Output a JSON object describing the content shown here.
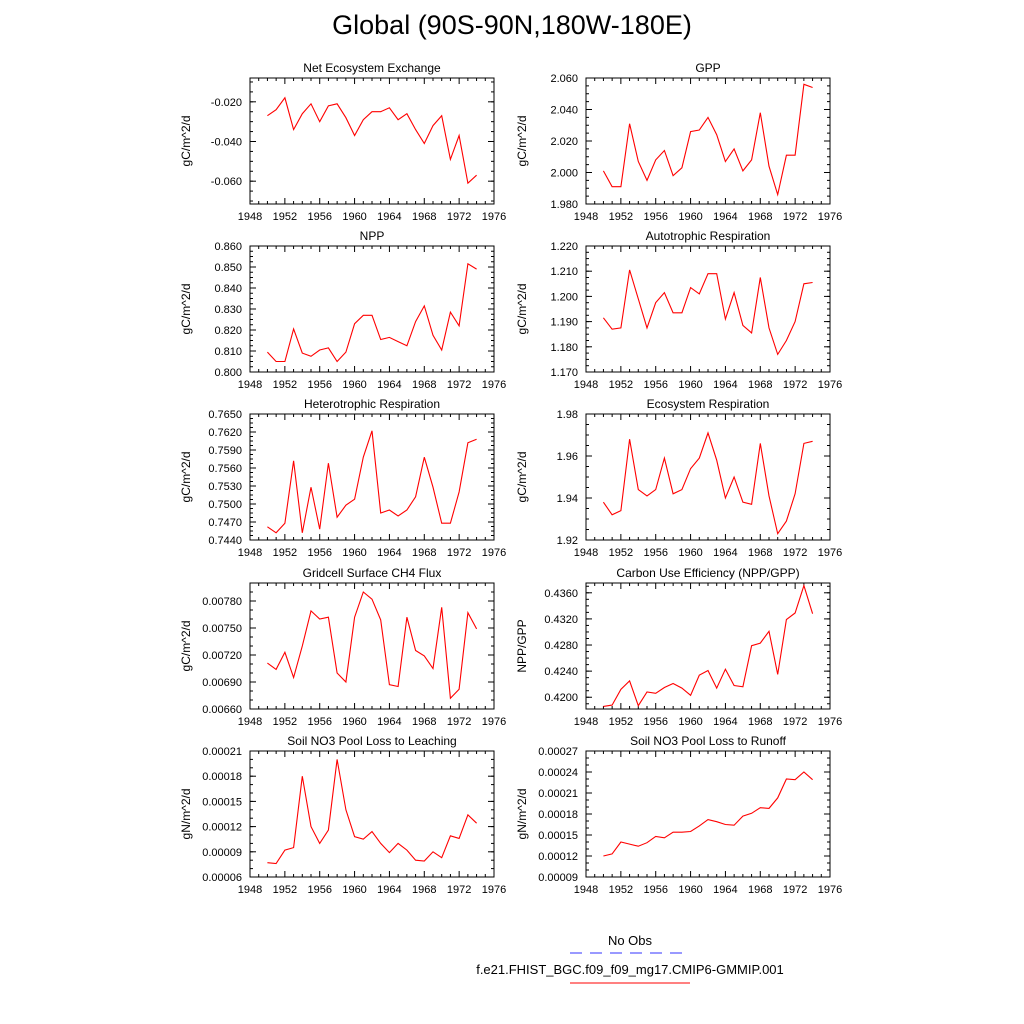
{
  "figure": {
    "title": "Global (90S-90N,180W-180E)",
    "legend": [
      {
        "label": "No Obs",
        "color": "#3333ff",
        "style": "dashed"
      },
      {
        "label": "f.e21.FHIST_BGC.f09_f09_mg17.CMIP6-GMMIP.001",
        "color": "#ff0000",
        "style": "solid"
      }
    ]
  },
  "chart_data": [
    {
      "type": "line",
      "title": "Net Ecosystem Exchange",
      "xlabel": "",
      "ylabel": "gC/m^2/d",
      "xlim": [
        1948,
        1976
      ],
      "xticks": [
        1948,
        1952,
        1956,
        1960,
        1964,
        1968,
        1972,
        1976
      ],
      "ylim": [
        -0.0715,
        -0.008
      ],
      "yticks": [
        -0.02,
        -0.04,
        -0.06
      ],
      "ytick_labels": [
        "-0.020",
        "-0.040",
        "-0.060"
      ],
      "yminor_step": 0.005,
      "series": [
        {
          "name": "f.e21.FHIST_BGC.f09_f09_mg17.CMIP6-GMMIP.001",
          "color": "#ff0000",
          "x": [
            1950,
            1951,
            1952,
            1953,
            1954,
            1955,
            1956,
            1957,
            1958,
            1959,
            1960,
            1961,
            1962,
            1963,
            1964,
            1965,
            1966,
            1967,
            1968,
            1969,
            1970,
            1971,
            1972,
            1973,
            1974
          ],
          "y": [
            -0.027,
            -0.024,
            -0.018,
            -0.034,
            -0.026,
            -0.021,
            -0.03,
            -0.022,
            -0.021,
            -0.028,
            -0.037,
            -0.029,
            -0.025,
            -0.025,
            -0.023,
            -0.029,
            -0.026,
            -0.034,
            -0.041,
            -0.032,
            -0.027,
            -0.049,
            -0.037,
            -0.061,
            -0.057
          ]
        }
      ]
    },
    {
      "type": "line",
      "title": "GPP",
      "xlabel": "",
      "ylabel": "gC/m^2/d",
      "xlim": [
        1948,
        1976
      ],
      "xticks": [
        1948,
        1952,
        1956,
        1960,
        1964,
        1968,
        1972,
        1976
      ],
      "ylim": [
        1.98,
        2.06
      ],
      "yticks": [
        1.98,
        2.0,
        2.02,
        2.04,
        2.06
      ],
      "ytick_labels": [
        "1.980",
        "2.000",
        "2.020",
        "2.040",
        "2.060"
      ],
      "yminor_step": 0.005,
      "series": [
        {
          "name": "f.e21.FHIST_BGC.f09_f09_mg17.CMIP6-GMMIP.001",
          "color": "#ff0000",
          "x": [
            1950,
            1951,
            1952,
            1953,
            1954,
            1955,
            1956,
            1957,
            1958,
            1959,
            1960,
            1961,
            1962,
            1963,
            1964,
            1965,
            1966,
            1967,
            1968,
            1969,
            1970,
            1971,
            1972,
            1973,
            1974
          ],
          "y": [
            2.001,
            1.991,
            1.991,
            2.031,
            2.007,
            1.995,
            2.008,
            2.014,
            1.998,
            2.003,
            2.026,
            2.027,
            2.035,
            2.024,
            2.007,
            2.015,
            2.001,
            2.008,
            2.038,
            2.004,
            1.986,
            2.011,
            2.011,
            2.056,
            2.054
          ]
        }
      ]
    },
    {
      "type": "line",
      "title": "NPP",
      "xlabel": "",
      "ylabel": "gC/m^2/d",
      "xlim": [
        1948,
        1976
      ],
      "xticks": [
        1948,
        1952,
        1956,
        1960,
        1964,
        1968,
        1972,
        1976
      ],
      "ylim": [
        0.8,
        0.86
      ],
      "yticks": [
        0.8,
        0.81,
        0.82,
        0.83,
        0.84,
        0.85,
        0.86
      ],
      "ytick_labels": [
        "0.800",
        "0.810",
        "0.820",
        "0.830",
        "0.840",
        "0.850",
        "0.860"
      ],
      "yminor_step": 0.0025,
      "series": [
        {
          "name": "f.e21.FHIST_BGC.f09_f09_mg17.CMIP6-GMMIP.001",
          "color": "#ff0000",
          "x": [
            1950,
            1951,
            1952,
            1953,
            1954,
            1955,
            1956,
            1957,
            1958,
            1959,
            1960,
            1961,
            1962,
            1963,
            1964,
            1965,
            1966,
            1967,
            1968,
            1969,
            1970,
            1971,
            1972,
            1973,
            1974
          ],
          "y": [
            0.8095,
            0.805,
            0.805,
            0.8205,
            0.809,
            0.8075,
            0.8105,
            0.8115,
            0.805,
            0.8095,
            0.823,
            0.827,
            0.827,
            0.8155,
            0.8165,
            0.8145,
            0.8125,
            0.824,
            0.8315,
            0.8175,
            0.8105,
            0.8285,
            0.822,
            0.8515,
            0.849
          ]
        }
      ]
    },
    {
      "type": "line",
      "title": "Autotrophic Respiration",
      "xlabel": "",
      "ylabel": "gC/m^2/d",
      "xlim": [
        1948,
        1976
      ],
      "xticks": [
        1948,
        1952,
        1956,
        1960,
        1964,
        1968,
        1972,
        1976
      ],
      "ylim": [
        1.17,
        1.22
      ],
      "yticks": [
        1.17,
        1.18,
        1.19,
        1.2,
        1.21,
        1.22
      ],
      "ytick_labels": [
        "1.170",
        "1.180",
        "1.190",
        "1.200",
        "1.210",
        "1.220"
      ],
      "yminor_step": 0.0025,
      "series": [
        {
          "name": "f.e21.FHIST_BGC.f09_f09_mg17.CMIP6-GMMIP.001",
          "color": "#ff0000",
          "x": [
            1950,
            1951,
            1952,
            1953,
            1954,
            1955,
            1956,
            1957,
            1958,
            1959,
            1960,
            1961,
            1962,
            1963,
            1964,
            1965,
            1966,
            1967,
            1968,
            1969,
            1970,
            1971,
            1972,
            1973,
            1974
          ],
          "y": [
            1.1915,
            1.187,
            1.1875,
            1.2105,
            1.199,
            1.1875,
            1.1975,
            1.2015,
            1.1935,
            1.1935,
            1.2035,
            1.201,
            1.209,
            1.209,
            1.191,
            1.2015,
            1.1885,
            1.1855,
            1.2075,
            1.1875,
            1.177,
            1.1825,
            1.19,
            1.205,
            1.2055
          ]
        }
      ]
    },
    {
      "type": "line",
      "title": "Heterotrophic Respiration",
      "xlabel": "",
      "ylabel": "gC/m^2/d",
      "xlim": [
        1948,
        1976
      ],
      "xticks": [
        1948,
        1952,
        1956,
        1960,
        1964,
        1968,
        1972,
        1976
      ],
      "ylim": [
        0.744,
        0.765
      ],
      "yticks": [
        0.744,
        0.747,
        0.75,
        0.753,
        0.756,
        0.759,
        0.762,
        0.765
      ],
      "ytick_labels": [
        "0.7440",
        "0.7470",
        "0.7500",
        "0.7530",
        "0.7560",
        "0.7590",
        "0.7620",
        "0.7650"
      ],
      "yminor_step": 0.00075,
      "series": [
        {
          "name": "f.e21.FHIST_BGC.f09_f09_mg17.CMIP6-GMMIP.001",
          "color": "#ff0000",
          "x": [
            1950,
            1951,
            1952,
            1953,
            1954,
            1955,
            1956,
            1957,
            1958,
            1959,
            1960,
            1961,
            1962,
            1963,
            1964,
            1965,
            1966,
            1967,
            1968,
            1969,
            1970,
            1971,
            1972,
            1973,
            1974
          ],
          "y": [
            0.7462,
            0.7452,
            0.7468,
            0.7572,
            0.7452,
            0.7528,
            0.7458,
            0.7568,
            0.7478,
            0.7498,
            0.7508,
            0.7578,
            0.7622,
            0.7485,
            0.749,
            0.748,
            0.749,
            0.7512,
            0.7578,
            0.7528,
            0.7468,
            0.7468,
            0.752,
            0.7602,
            0.7608
          ]
        }
      ]
    },
    {
      "type": "line",
      "title": "Ecosystem Respiration",
      "xlabel": "",
      "ylabel": "gC/m^2/d",
      "xlim": [
        1948,
        1976
      ],
      "xticks": [
        1948,
        1952,
        1956,
        1960,
        1964,
        1968,
        1972,
        1976
      ],
      "ylim": [
        1.92,
        1.98
      ],
      "yticks": [
        1.92,
        1.94,
        1.96,
        1.98
      ],
      "ytick_labels": [
        "1.92",
        "1.94",
        "1.96",
        "1.98"
      ],
      "yminor_step": 0.005,
      "series": [
        {
          "name": "f.e21.FHIST_BGC.f09_f09_mg17.CMIP6-GMMIP.001",
          "color": "#ff0000",
          "x": [
            1950,
            1951,
            1952,
            1953,
            1954,
            1955,
            1956,
            1957,
            1958,
            1959,
            1960,
            1961,
            1962,
            1963,
            1964,
            1965,
            1966,
            1967,
            1968,
            1969,
            1970,
            1971,
            1972,
            1973,
            1974
          ],
          "y": [
            1.938,
            1.932,
            1.934,
            1.968,
            1.944,
            1.941,
            1.944,
            1.959,
            1.942,
            1.944,
            1.954,
            1.959,
            1.971,
            1.958,
            1.94,
            1.95,
            1.938,
            1.937,
            1.966,
            1.941,
            1.923,
            1.929,
            1.942,
            1.966,
            1.967
          ]
        }
      ]
    },
    {
      "type": "line",
      "title": "Gridcell Surface CH4 Flux",
      "xlabel": "",
      "ylabel": "gC/m^2/d",
      "xlim": [
        1948,
        1976
      ],
      "xticks": [
        1948,
        1952,
        1956,
        1960,
        1964,
        1968,
        1972,
        1976
      ],
      "ylim": [
        0.0066,
        0.008
      ],
      "yticks": [
        0.0066,
        0.0069,
        0.0072,
        0.0075,
        0.0078
      ],
      "ytick_labels": [
        "0.00660",
        "0.00690",
        "0.00720",
        "0.00750",
        "0.00780"
      ],
      "yminor_step": 0.0001,
      "series": [
        {
          "name": "f.e21.FHIST_BGC.f09_f09_mg17.CMIP6-GMMIP.001",
          "color": "#ff0000",
          "x": [
            1950,
            1951,
            1952,
            1953,
            1954,
            1955,
            1956,
            1957,
            1958,
            1959,
            1960,
            1961,
            1962,
            1963,
            1964,
            1965,
            1966,
            1967,
            1968,
            1969,
            1970,
            1971,
            1972,
            1973,
            1974
          ],
          "y": [
            0.00711,
            0.00704,
            0.00723,
            0.00695,
            0.0073,
            0.00769,
            0.0076,
            0.00762,
            0.007,
            0.0069,
            0.00762,
            0.0079,
            0.00782,
            0.00759,
            0.00687,
            0.00685,
            0.00762,
            0.00725,
            0.00719,
            0.00705,
            0.00773,
            0.00672,
            0.00682,
            0.00767,
            0.00749
          ]
        }
      ]
    },
    {
      "type": "line",
      "title": "Carbon Use Efficiency (NPP/GPP)",
      "xlabel": "",
      "ylabel": "NPP/GPP",
      "xlim": [
        1948,
        1976
      ],
      "xticks": [
        1948,
        1952,
        1956,
        1960,
        1964,
        1968,
        1972,
        1976
      ],
      "ylim": [
        0.4182,
        0.4375
      ],
      "yticks": [
        0.42,
        0.424,
        0.428,
        0.432,
        0.436
      ],
      "ytick_labels": [
        "0.4200",
        "0.4240",
        "0.4280",
        "0.4320",
        "0.4360"
      ],
      "yminor_step": 0.001,
      "series": [
        {
          "name": "f.e21.FHIST_BGC.f09_f09_mg17.CMIP6-GMMIP.001",
          "color": "#ff0000",
          "x": [
            1950,
            1951,
            1952,
            1953,
            1954,
            1955,
            1956,
            1957,
            1958,
            1959,
            1960,
            1961,
            1962,
            1963,
            1964,
            1965,
            1966,
            1967,
            1968,
            1969,
            1970,
            1971,
            1972,
            1973,
            1974
          ],
          "y": [
            0.4186,
            0.4188,
            0.4212,
            0.4225,
            0.4187,
            0.4208,
            0.4206,
            0.4215,
            0.4221,
            0.4214,
            0.4203,
            0.4234,
            0.4241,
            0.4214,
            0.4243,
            0.4218,
            0.4216,
            0.4279,
            0.4283,
            0.4301,
            0.4235,
            0.4319,
            0.4329,
            0.4371,
            0.4328
          ]
        }
      ]
    },
    {
      "type": "line",
      "title": "Soil NO3 Pool Loss to Leaching",
      "xlabel": "",
      "ylabel": "gN/m^2/d",
      "xlim": [
        1948,
        1976
      ],
      "xticks": [
        1948,
        1952,
        1956,
        1960,
        1964,
        1968,
        1972,
        1976
      ],
      "ylim": [
        6e-05,
        0.00021
      ],
      "yticks": [
        6e-05,
        9e-05,
        0.00012,
        0.00015,
        0.00018,
        0.00021
      ],
      "ytick_labels": [
        "0.00006",
        "0.00009",
        "0.00012",
        "0.00015",
        "0.00018",
        "0.00021"
      ],
      "yminor_step": 1e-05,
      "series": [
        {
          "name": "f.e21.FHIST_BGC.f09_f09_mg17.CMIP6-GMMIP.001",
          "color": "#ff0000",
          "x": [
            1950,
            1951,
            1952,
            1953,
            1954,
            1955,
            1956,
            1957,
            1958,
            1959,
            1960,
            1961,
            1962,
            1963,
            1964,
            1965,
            1966,
            1967,
            1968,
            1969,
            1970,
            1971,
            1972,
            1973,
            1974
          ],
          "y": [
            7.7e-05,
            7.6e-05,
            9.2e-05,
            9.5e-05,
            0.00018,
            0.00012,
            0.0001,
            0.000116,
            0.0002,
            0.00014,
            0.000108,
            0.000105,
            0.000114,
            0.0001,
            8.9e-05,
            0.0001,
            9.2e-05,
            8e-05,
            7.9e-05,
            9e-05,
            8.3e-05,
            0.000109,
            0.000106,
            0.000134,
            0.000124
          ]
        }
      ]
    },
    {
      "type": "line",
      "title": "Soil NO3 Pool Loss to Runoff",
      "xlabel": "",
      "ylabel": "gN/m^2/d",
      "xlim": [
        1948,
        1976
      ],
      "xticks": [
        1948,
        1952,
        1956,
        1960,
        1964,
        1968,
        1972,
        1976
      ],
      "ylim": [
        9e-05,
        0.00027
      ],
      "yticks": [
        9e-05,
        0.00012,
        0.00015,
        0.00018,
        0.00021,
        0.00024,
        0.00027
      ],
      "ytick_labels": [
        "0.00009",
        "0.00012",
        "0.00015",
        "0.00018",
        "0.00021",
        "0.00024",
        "0.00027"
      ],
      "yminor_step": 1e-05,
      "series": [
        {
          "name": "f.e21.FHIST_BGC.f09_f09_mg17.CMIP6-GMMIP.001",
          "color": "#ff0000",
          "x": [
            1950,
            1951,
            1952,
            1953,
            1954,
            1955,
            1956,
            1957,
            1958,
            1959,
            1960,
            1961,
            1962,
            1963,
            1964,
            1965,
            1966,
            1967,
            1968,
            1969,
            1970,
            1971,
            1972,
            1973,
            1974
          ],
          "y": [
            0.00012,
            0.000123,
            0.00014,
            0.000137,
            0.000134,
            0.000139,
            0.000148,
            0.000146,
            0.000154,
            0.000154,
            0.000155,
            0.000163,
            0.000172,
            0.000169,
            0.000165,
            0.000164,
            0.000177,
            0.000181,
            0.000189,
            0.000188,
            0.000203,
            0.00023,
            0.000229,
            0.00024,
            0.000229
          ]
        }
      ]
    }
  ]
}
